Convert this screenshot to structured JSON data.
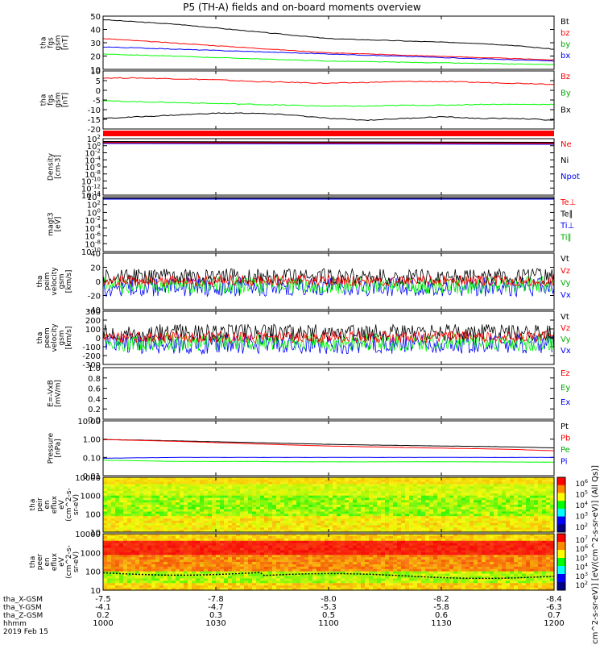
{
  "title": "P5 (TH-A) fields and on-board moments overview",
  "colors": {
    "black": "#000000",
    "red": "#ff0000",
    "green": "#00ff00",
    "blue": "#0000ff"
  },
  "chart_data": [
    {
      "type": "line",
      "id": "fgs_mag",
      "ylabel": [
        "tha",
        "fgs",
        "gsm",
        "[nT]"
      ],
      "yticks": [
        "50",
        "40",
        "30",
        "20",
        "10"
      ],
      "ylim": [
        7,
        52
      ],
      "legend": [
        {
          "name": "Bt",
          "color": "#000000"
        },
        {
          "name": "bz",
          "color": "#ff0000"
        },
        {
          "name": "by",
          "color": "#00aa00"
        },
        {
          "name": "bx",
          "color": "#0000ff"
        }
      ],
      "series": [
        {
          "name": "Bt",
          "color": "#000000",
          "x": [
            1000,
            1010,
            1020,
            1030,
            1040,
            1050,
            1100,
            1110,
            1120,
            1130,
            1140,
            1150,
            1200
          ],
          "y": [
            49,
            47,
            45,
            42,
            39,
            36,
            33,
            32,
            31,
            30,
            29,
            27,
            24
          ]
        },
        {
          "name": "bz",
          "color": "#ff0000",
          "x": [
            1000,
            1010,
            1020,
            1030,
            1040,
            1050,
            1100,
            1110,
            1120,
            1130,
            1140,
            1150,
            1200
          ],
          "y": [
            33,
            31,
            29,
            27,
            25,
            23,
            21,
            20,
            19,
            18,
            17,
            16,
            15
          ]
        },
        {
          "name": "by",
          "color": "#00ff00",
          "x": [
            1000,
            1010,
            1020,
            1030,
            1040,
            1050,
            1100,
            1110,
            1120,
            1130,
            1140,
            1150,
            1200
          ],
          "y": [
            20,
            19,
            18,
            17,
            16,
            15,
            14,
            13.5,
            13,
            12.5,
            12,
            11.5,
            11
          ]
        },
        {
          "name": "bx",
          "color": "#0000ff",
          "x": [
            1000,
            1010,
            1020,
            1030,
            1040,
            1050,
            1100,
            1110,
            1120,
            1130,
            1140,
            1150,
            1200
          ],
          "y": [
            26,
            25,
            24,
            23,
            22,
            21,
            20,
            19,
            18,
            17,
            16,
            15,
            14
          ]
        }
      ]
    },
    {
      "type": "line",
      "id": "fgs_comp",
      "ylabel": [
        "tha",
        "fgs",
        "gsm",
        "[nT]"
      ],
      "yticks": [
        "10",
        "5",
        "0",
        "-5",
        "-10",
        "-15",
        "-20"
      ],
      "ylim": [
        -22,
        11
      ],
      "legend": [
        {
          "name": "Bz",
          "color": "#ff0000"
        },
        {
          "name": "By",
          "color": "#00aa00"
        },
        {
          "name": "Bx",
          "color": "#000000"
        }
      ],
      "series": [
        {
          "name": "Bz",
          "color": "#ff0000",
          "x": [
            1000,
            1010,
            1020,
            1030,
            1040,
            1050,
            1100,
            1110,
            1120,
            1130,
            1140,
            1150,
            1200
          ],
          "y": [
            7,
            7,
            6.5,
            6,
            5,
            4.5,
            4,
            4.5,
            5,
            5,
            4.5,
            4,
            3.5
          ]
        },
        {
          "name": "By",
          "color": "#00ff00",
          "x": [
            1000,
            1010,
            1020,
            1030,
            1040,
            1050,
            1100,
            1110,
            1120,
            1130,
            1140,
            1150,
            1200
          ],
          "y": [
            -6,
            -6.5,
            -7,
            -7.5,
            -8,
            -8.5,
            -9,
            -9,
            -8.5,
            -8.5,
            -8,
            -8,
            -8
          ]
        },
        {
          "name": "Bx",
          "color": "#000000",
          "x": [
            1000,
            1010,
            1020,
            1030,
            1040,
            1050,
            1100,
            1110,
            1120,
            1130,
            1140,
            1150,
            1200
          ],
          "y": [
            -16,
            -15,
            -14,
            -13,
            -13,
            -14,
            -16,
            -17,
            -16,
            -15,
            -16,
            -16,
            -17
          ]
        }
      ]
    },
    {
      "type": "line",
      "id": "density",
      "ylabel": [
        "Density",
        "[cm-3]"
      ],
      "yticks": [
        "10^2",
        "10^0",
        "10^-2",
        "10^-4",
        "10^-6",
        "10^-8",
        "10^-10",
        "10^-12",
        "10^-14"
      ],
      "legend": [
        {
          "name": "Ne",
          "color": "#ff0000"
        },
        {
          "name": "Ni",
          "color": "#000000"
        },
        {
          "name": "Npot",
          "color": "#0000ff"
        }
      ]
    },
    {
      "type": "line",
      "id": "temperature",
      "ylabel": [
        "magt3",
        "[eV]"
      ],
      "yticks": [
        "10^4",
        "10^2",
        "10^0",
        "10^-2",
        "10^-4",
        "10^-6",
        "10^-8",
        "10^-10"
      ],
      "legend": [
        {
          "name": "Te⊥",
          "color": "#ff0000"
        },
        {
          "name": "Te∥",
          "color": "#000000"
        },
        {
          "name": "Ti⊥",
          "color": "#0000ff"
        },
        {
          "name": "Ti∥",
          "color": "#00aa00"
        }
      ]
    },
    {
      "type": "line",
      "id": "peim_vel",
      "ylabel": [
        "tha",
        "peim",
        "velocity",
        "gsm",
        "[km/s]"
      ],
      "yticks": [
        "40",
        "20",
        "0",
        "-20",
        "-40"
      ],
      "ylim": [
        -40,
        40
      ],
      "legend": [
        {
          "name": "Vt",
          "color": "#000000"
        },
        {
          "name": "Vz",
          "color": "#ff0000"
        },
        {
          "name": "Vy",
          "color": "#00aa00"
        },
        {
          "name": "Vx",
          "color": "#0000ff"
        }
      ]
    },
    {
      "type": "line",
      "id": "peem_vel",
      "ylabel": [
        "tha",
        "peem",
        "velocity",
        "gsm",
        "[km/s]"
      ],
      "yticks": [
        "300",
        "200",
        "100",
        "0",
        "-100",
        "-200",
        "-300"
      ],
      "ylim": [
        -300,
        300
      ],
      "legend": [
        {
          "name": "Vt",
          "color": "#000000"
        },
        {
          "name": "Vz",
          "color": "#ff0000"
        },
        {
          "name": "Vy",
          "color": "#00aa00"
        },
        {
          "name": "Vx",
          "color": "#0000ff"
        }
      ]
    },
    {
      "type": "line",
      "id": "efield",
      "ylabel": [
        "E=-VxB",
        "[mV/m]"
      ],
      "yticks": [
        "1.0",
        "0.8",
        "0.6",
        "0.4",
        "0.2",
        "0.0"
      ],
      "ylim": [
        0,
        1
      ],
      "legend": [
        {
          "name": "Ez",
          "color": "#ff0000"
        },
        {
          "name": "Ey",
          "color": "#00aa00"
        },
        {
          "name": "Ex",
          "color": "#0000ff"
        }
      ]
    },
    {
      "type": "line",
      "id": "pressure",
      "ylabel": [
        "Pressure",
        "[nPa]"
      ],
      "yticks": [
        "10.00",
        "1.00",
        "0.10",
        "0.01"
      ],
      "legend": [
        {
          "name": "Pt",
          "color": "#000000"
        },
        {
          "name": "Pb",
          "color": "#ff0000"
        },
        {
          "name": "Pe",
          "color": "#00aa00"
        },
        {
          "name": "Pi",
          "color": "#0000ff"
        }
      ],
      "series": [
        {
          "name": "Pt",
          "color": "#000000",
          "x": [
            1000,
            1010,
            1020,
            1030,
            1040,
            1050,
            1100,
            1110,
            1120,
            1130,
            1140,
            1150,
            1200
          ],
          "y": [
            0.95,
            0.88,
            0.8,
            0.72,
            0.65,
            0.58,
            0.52,
            0.48,
            0.45,
            0.42,
            0.4,
            0.37,
            0.33
          ]
        },
        {
          "name": "Pb",
          "color": "#ff0000",
          "x": [
            1000,
            1010,
            1020,
            1030,
            1040,
            1050,
            1100,
            1110,
            1120,
            1130,
            1140,
            1150,
            1200
          ],
          "y": [
            0.95,
            0.85,
            0.75,
            0.65,
            0.55,
            0.48,
            0.42,
            0.38,
            0.35,
            0.32,
            0.3,
            0.27,
            0.23
          ]
        },
        {
          "name": "Pi",
          "color": "#0000ff",
          "x": [
            1000,
            1010,
            1020,
            1030,
            1040,
            1050,
            1100,
            1110,
            1120,
            1130,
            1140,
            1150,
            1200
          ],
          "y": [
            0.09,
            0.095,
            0.1,
            0.1,
            0.1,
            0.1,
            0.1,
            0.1,
            0.1,
            0.1,
            0.1,
            0.1,
            0.1
          ]
        },
        {
          "name": "Pe",
          "color": "#00ff00",
          "x": [
            1000,
            1010,
            1020,
            1030,
            1040,
            1050,
            1100,
            1110,
            1120,
            1130,
            1140,
            1150,
            1200
          ],
          "y": [
            0.07,
            0.065,
            0.06,
            0.06,
            0.06,
            0.058,
            0.057,
            0.057,
            0.058,
            0.058,
            0.057,
            0.056,
            0.055
          ]
        }
      ]
    },
    {
      "type": "heatmap",
      "id": "peir_spec",
      "ylabel": [
        "tha",
        "peir",
        "en",
        "eflux",
        "eV",
        "(cm^2-s-",
        "sr-eV)"
      ],
      "yticks": [
        "10000",
        "1000",
        "100",
        "10"
      ],
      "colorbar_ticks": [
        "10^6",
        "10^5",
        "10^4",
        "10^3",
        "10^2"
      ]
    },
    {
      "type": "heatmap",
      "id": "peer_spec",
      "ylabel": [
        "tha",
        "peer",
        "en",
        "eflux",
        "eV",
        "(cm^2-s-",
        "sr-eV)"
      ],
      "yticks": [
        "10000",
        "1000",
        "100",
        "10"
      ],
      "colorbar_ticks": [
        "10^7",
        "10^6",
        "10^5",
        "10^4",
        "10^3",
        "10^2"
      ]
    }
  ],
  "colorbar_label": "[eV/(cm^2-s-sr-eV)]   [eV/(cm^2-s-sr-eV)] (All Qs)]",
  "x_axis": {
    "rows": [
      {
        "name": "tha_X-GSM",
        "values": [
          "-7.5",
          "-7.8",
          "-8.0",
          "-8.2",
          "-8.4"
        ]
      },
      {
        "name": "tha_Y-GSM",
        "values": [
          "-4.1",
          "-4.7",
          "-5.3",
          "-5.8",
          "-6.3"
        ]
      },
      {
        "name": "tha_Z-GSM",
        "values": [
          "0.2",
          "0.3",
          "0.5",
          "0.6",
          "0.7"
        ]
      },
      {
        "name": "hhmm",
        "values": [
          "1000",
          "1030",
          "1100",
          "1130",
          "1200"
        ]
      }
    ],
    "date": "2019 Feb 15",
    "xlim": [
      1000,
      1200
    ]
  }
}
